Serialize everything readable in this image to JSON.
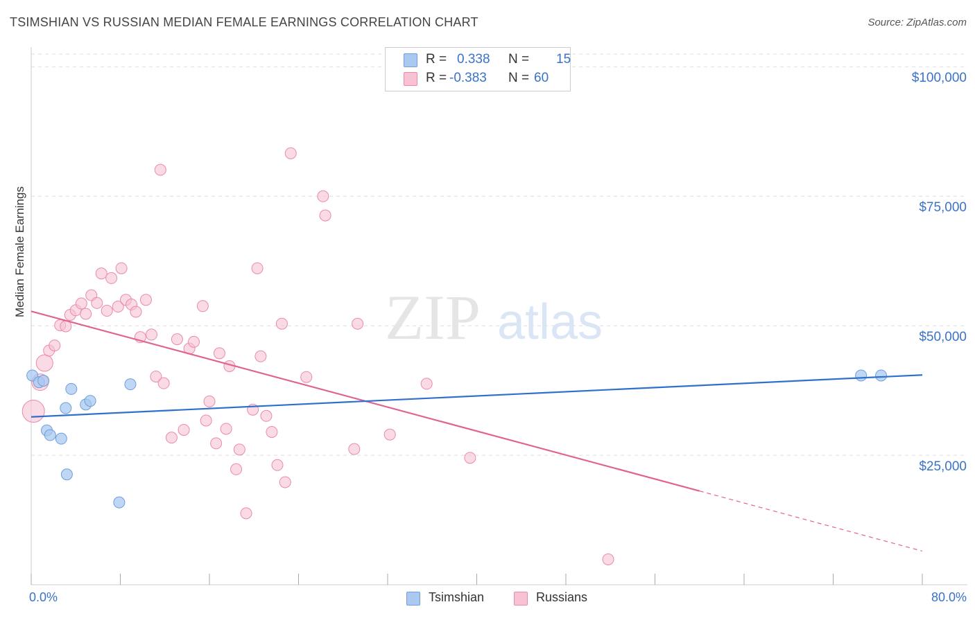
{
  "header": {
    "title": "TSIMSHIAN VS RUSSIAN MEDIAN FEMALE EARNINGS CORRELATION CHART",
    "source": "Source: ZipAtlas.com"
  },
  "watermark": {
    "zip": "ZIP",
    "atlas": "atlas"
  },
  "legend_top": {
    "rows": [
      {
        "r_label": "R =",
        "r_value": "0.338",
        "n_label": "N =",
        "n_value": "15"
      },
      {
        "r_label": "R =",
        "r_value": "-0.383",
        "n_label": "N =",
        "n_value": "60"
      }
    ]
  },
  "legend_bottom": {
    "items": [
      "Tsimshian",
      "Russians"
    ]
  },
  "colors": {
    "tsimshian_fill": "#aac8f0",
    "tsimshian_stroke": "#6c9fdb",
    "tsimshian_line": "#2f6fce",
    "russians_fill": "#f7c2d3",
    "russians_stroke": "#e98aaa",
    "russians_line": "#e0648f",
    "axis_text": "#3a72c8",
    "grid": "#dddddd"
  },
  "chart_data": {
    "type": "scatter",
    "title": "TSIMSHIAN VS RUSSIAN MEDIAN FEMALE EARNINGS CORRELATION CHART",
    "xlabel": "",
    "ylabel": "Median Female Earnings",
    "xlim": [
      0,
      80
    ],
    "ylim": [
      0,
      105000
    ],
    "x_tick_labels": [
      "0.0%",
      "80.0%"
    ],
    "y_ticks": [
      25000,
      50000,
      75000,
      100000
    ],
    "y_tick_labels": [
      "$25,000",
      "$50,000",
      "$75,000",
      "$100,000"
    ],
    "grid": true,
    "series": [
      {
        "name": "Tsimshian",
        "color": "#aac8f0",
        "points": [
          [
            0.1,
            40400
          ],
          [
            0.7,
            39100
          ],
          [
            1.1,
            39400
          ],
          [
            1.4,
            29800
          ],
          [
            1.7,
            28900
          ],
          [
            2.7,
            28200
          ],
          [
            3.1,
            34100
          ],
          [
            3.2,
            21300
          ],
          [
            3.6,
            37800
          ],
          [
            4.9,
            34800
          ],
          [
            5.3,
            35500
          ],
          [
            7.9,
            15900
          ],
          [
            8.9,
            38700
          ],
          [
            74.5,
            40400
          ],
          [
            76.3,
            40400
          ]
        ],
        "trend": {
          "x": [
            0,
            80
          ],
          "y": [
            32400,
            40500
          ]
        }
      },
      {
        "name": "Russians",
        "color": "#f7c2d3",
        "points": [
          [
            0.2,
            33500
          ],
          [
            0.8,
            39100
          ],
          [
            1.2,
            42800
          ],
          [
            1.6,
            45200
          ],
          [
            2.1,
            46200
          ],
          [
            2.6,
            50100
          ],
          [
            3.1,
            49900
          ],
          [
            3.5,
            52100
          ],
          [
            4.0,
            53000
          ],
          [
            4.5,
            54300
          ],
          [
            4.9,
            52300
          ],
          [
            5.4,
            55900
          ],
          [
            5.9,
            54400
          ],
          [
            6.3,
            60100
          ],
          [
            6.8,
            52900
          ],
          [
            7.2,
            59200
          ],
          [
            7.8,
            53700
          ],
          [
            8.1,
            61100
          ],
          [
            8.5,
            55000
          ],
          [
            9.0,
            54100
          ],
          [
            9.4,
            52700
          ],
          [
            9.8,
            47800
          ],
          [
            10.3,
            55000
          ],
          [
            10.8,
            48300
          ],
          [
            11.2,
            40200
          ],
          [
            11.6,
            80100
          ],
          [
            11.9,
            38900
          ],
          [
            12.6,
            28400
          ],
          [
            13.1,
            47400
          ],
          [
            13.7,
            29900
          ],
          [
            14.2,
            45600
          ],
          [
            14.6,
            46900
          ],
          [
            15.4,
            53800
          ],
          [
            15.7,
            31700
          ],
          [
            16.0,
            35400
          ],
          [
            16.6,
            27300
          ],
          [
            16.9,
            44700
          ],
          [
            17.5,
            30100
          ],
          [
            17.8,
            42200
          ],
          [
            18.4,
            22300
          ],
          [
            18.7,
            26100
          ],
          [
            19.3,
            13800
          ],
          [
            19.9,
            33800
          ],
          [
            20.3,
            61100
          ],
          [
            20.6,
            44100
          ],
          [
            21.1,
            32600
          ],
          [
            21.6,
            29500
          ],
          [
            22.1,
            23100
          ],
          [
            22.5,
            50400
          ],
          [
            22.8,
            19800
          ],
          [
            23.3,
            83300
          ],
          [
            24.7,
            40100
          ],
          [
            26.2,
            75000
          ],
          [
            26.4,
            71300
          ],
          [
            29.0,
            26200
          ],
          [
            29.3,
            50400
          ],
          [
            32.2,
            29000
          ],
          [
            35.5,
            38800
          ],
          [
            39.4,
            24500
          ],
          [
            51.8,
            4900
          ]
        ],
        "trend": {
          "x": [
            0,
            60
          ],
          "y": [
            52800,
            18100
          ]
        },
        "trend_dashed": {
          "x": [
            60,
            80
          ],
          "y": [
            18100,
            6500
          ]
        }
      }
    ]
  }
}
